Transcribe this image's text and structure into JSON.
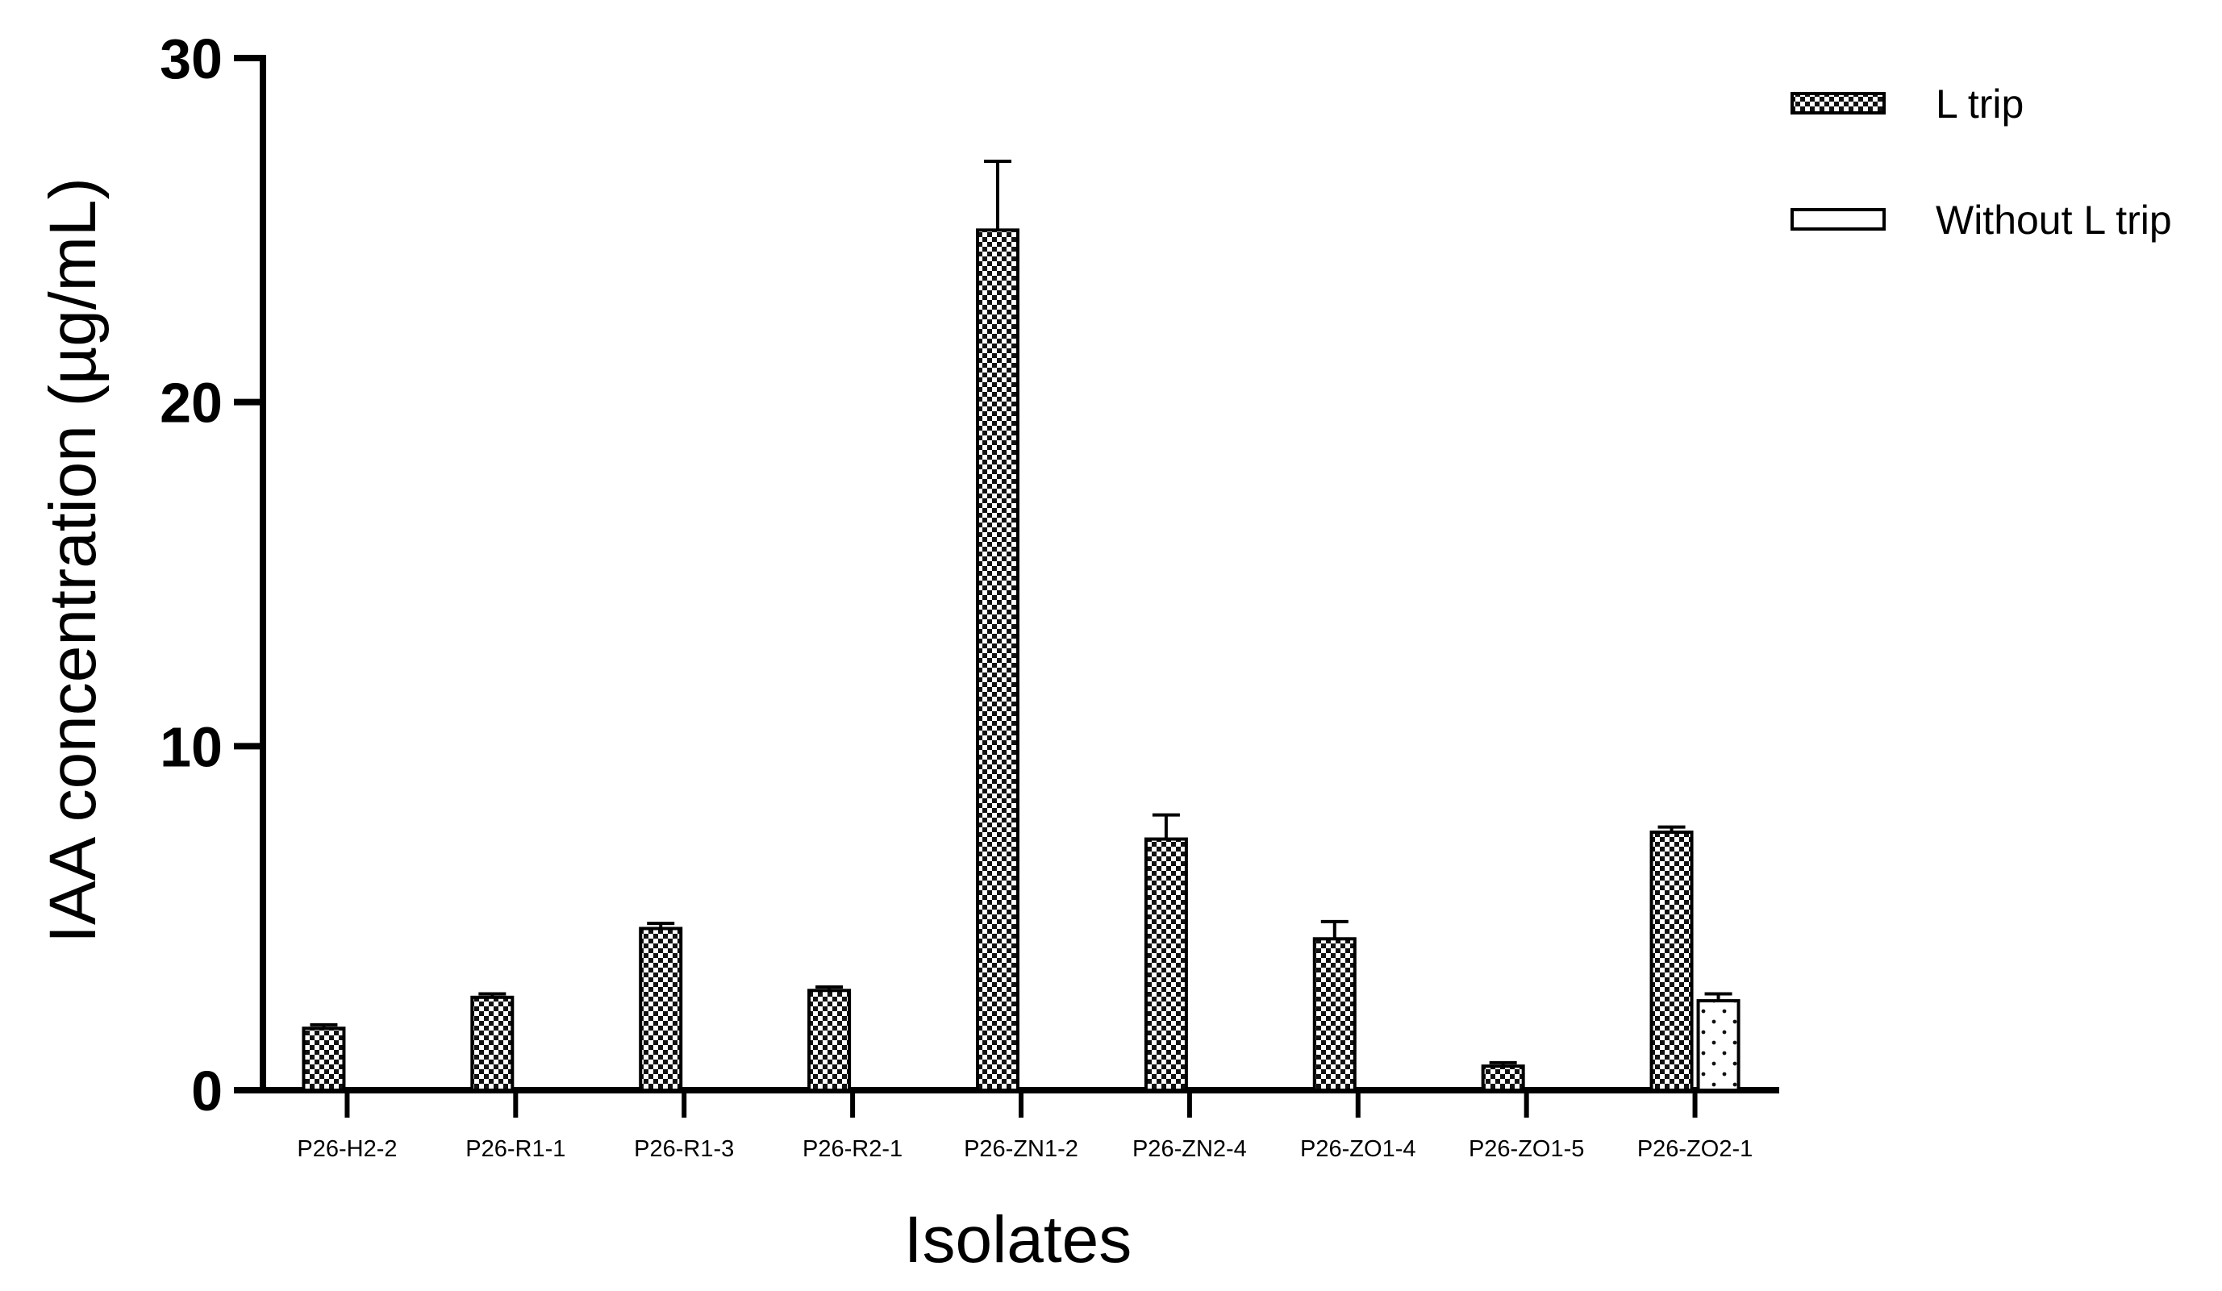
{
  "chart_data": {
    "type": "bar",
    "title": "",
    "xlabel": "Isolates",
    "ylabel": "IAA concentration (µg/mL)",
    "ylim": [
      0,
      30
    ],
    "yticks": [
      0,
      10,
      20,
      30
    ],
    "grid": false,
    "legend_position": "top-right",
    "categories": [
      "P26-H2-2",
      "P26-R1-1",
      "P26-R1-3",
      "P26-R2-1",
      "P26-ZN1-2",
      "P26-ZN2-4",
      "P26-ZO1-4",
      "P26-ZO1-5",
      "P26-ZO2-1"
    ],
    "series": [
      {
        "name": "L trip",
        "pattern": "checkerboard",
        "values": [
          1.8,
          2.7,
          4.7,
          2.9,
          25.0,
          7.3,
          4.4,
          0.7,
          7.5
        ],
        "errors": [
          0.1,
          0.1,
          0.15,
          0.1,
          2.0,
          0.7,
          0.5,
          0.1,
          0.15
        ]
      },
      {
        "name": "Without L trip",
        "pattern": "dotted",
        "values": [
          null,
          null,
          null,
          null,
          null,
          null,
          null,
          null,
          2.6
        ],
        "errors": [
          null,
          null,
          null,
          null,
          null,
          null,
          null,
          null,
          0.2
        ]
      }
    ]
  }
}
